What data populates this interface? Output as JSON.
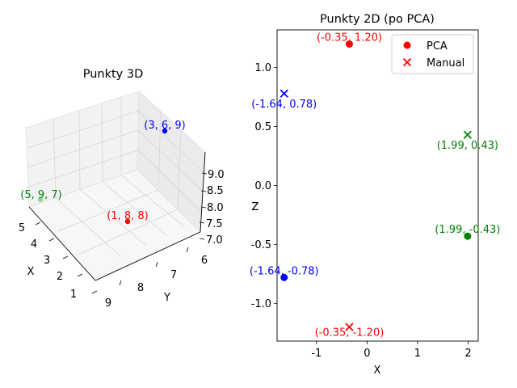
{
  "colors": {
    "red": "#ff0000",
    "blue": "#0000ff",
    "green": "#008000",
    "axis": "#000000",
    "pane": "#f2f2f2",
    "grid": "#d9d9d9"
  },
  "chart_data": [
    {
      "type": "scatter3d",
      "title": "Punkty 3D",
      "xlabel": "X",
      "ylabel": "Y",
      "zlabel": "Z",
      "x_ticks": [
        "1",
        "2",
        "3",
        "4",
        "5"
      ],
      "y_ticks": [
        "6",
        "7",
        "8",
        "9"
      ],
      "z_ticks": [
        "7.0",
        "7.5",
        "8.0",
        "8.5",
        "9.0"
      ],
      "xlim": [
        1,
        5
      ],
      "ylim": [
        6,
        9
      ],
      "zlim": [
        7,
        9
      ],
      "grid": true,
      "points": [
        {
          "label": "(1, 8, 8)",
          "x": 1,
          "y": 8,
          "z": 8,
          "color": "red"
        },
        {
          "label": "(3, 6, 9)",
          "x": 3,
          "y": 6,
          "z": 9,
          "color": "blue"
        },
        {
          "label": "(5, 9, 7)",
          "x": 5,
          "y": 9,
          "z": 7,
          "color": "green"
        }
      ]
    },
    {
      "type": "scatter",
      "title": "Punkty 2D (po PCA)",
      "xlabel": "X",
      "ylabel": "Z",
      "x_ticks": [
        "-1",
        "0",
        "1",
        "2"
      ],
      "y_ticks": [
        "-1.0",
        "-0.5",
        "0.0",
        "0.5",
        "1.0"
      ],
      "xlim": [
        -1.78,
        2.2
      ],
      "ylim": [
        -1.32,
        1.32
      ],
      "legend_position": "top-right",
      "series": [
        {
          "name": "PCA",
          "marker": "circle",
          "points": [
            {
              "x": -0.35,
              "y": 1.2,
              "label": "(-0.35, 1.20)",
              "color": "red"
            },
            {
              "x": -1.64,
              "y": -0.78,
              "label": "(-1.64, -0.78)",
              "color": "blue"
            },
            {
              "x": 1.99,
              "y": -0.43,
              "label": "(1.99, -0.43)",
              "color": "green"
            }
          ]
        },
        {
          "name": "Manual",
          "marker": "x",
          "points": [
            {
              "x": -0.35,
              "y": -1.2,
              "label": "(-0.35, -1.20)",
              "color": "red"
            },
            {
              "x": -1.64,
              "y": 0.78,
              "label": "(-1.64, 0.78)",
              "color": "blue"
            },
            {
              "x": 1.99,
              "y": 0.43,
              "label": "(1.99, 0.43)",
              "color": "green"
            }
          ]
        }
      ]
    }
  ]
}
